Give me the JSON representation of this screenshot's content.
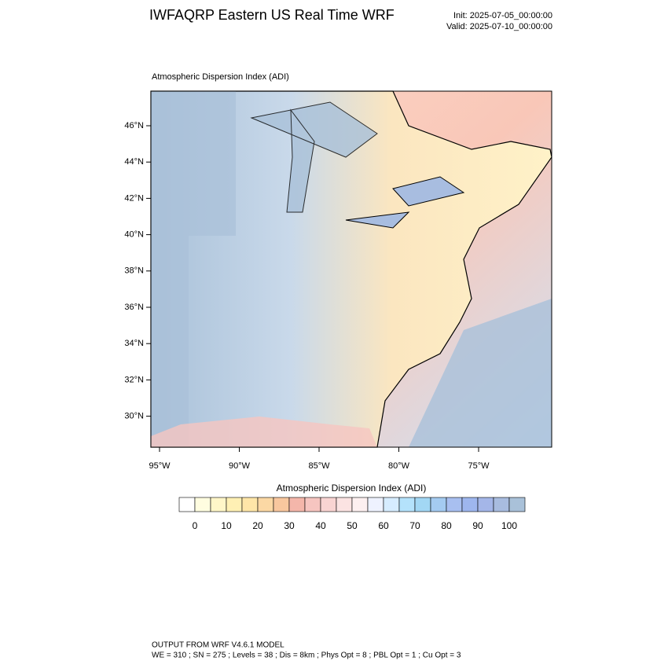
{
  "header": {
    "title": "IWFAQRP Eastern US Real Time WRF",
    "init": "Init: 2025-07-05_00:00:00",
    "valid": "Valid: 2025-07-10_00:00:00"
  },
  "map": {
    "subtitle": "Atmospheric Dispersion Index   (ADI)",
    "lat_ticks": [
      {
        "value": 46,
        "label": "46°N"
      },
      {
        "value": 44,
        "label": "44°N"
      },
      {
        "value": 42,
        "label": "42°N"
      },
      {
        "value": 40,
        "label": "40°N"
      },
      {
        "value": 38,
        "label": "38°N"
      },
      {
        "value": 36,
        "label": "36°N"
      },
      {
        "value": 34,
        "label": "34°N"
      },
      {
        "value": 32,
        "label": "32°N"
      },
      {
        "value": 30,
        "label": "30°N"
      }
    ],
    "lon_ticks": [
      {
        "value": -95,
        "label": "95°W"
      },
      {
        "value": -90,
        "label": "90°W"
      },
      {
        "value": -85,
        "label": "85°W"
      },
      {
        "value": -80,
        "label": "80°W"
      },
      {
        "value": -75,
        "label": "75°W"
      }
    ]
  },
  "colorbar": {
    "title": "Atmospheric Dispersion Index  (ADI)",
    "colors": [
      "#ffffff",
      "#fffde0",
      "#fff6c8",
      "#fff0b4",
      "#ffe6a8",
      "#fbd8a4",
      "#f8c79e",
      "#f4b6aa",
      "#f6c5c0",
      "#f9d4d2",
      "#fbe3e2",
      "#fdf0f0",
      "#eef2ff",
      "#d6ecff",
      "#b4e2fb",
      "#a2d7f4",
      "#a4cbf1",
      "#a8bff0",
      "#9eb6ee",
      "#a4b6e8",
      "#a8bcdf",
      "#a9c1d9"
    ],
    "ticks": [
      0,
      10,
      20,
      30,
      40,
      50,
      60,
      70,
      80,
      90,
      100
    ]
  },
  "footer": {
    "line1": "OUTPUT FROM WRF V4.6.1 MODEL",
    "line2": "WE = 310 ; SN = 275 ; Levels = 38 ; Dis = 8km ; Phys Opt = 8 ; PBL Opt = 1 ; Cu Opt = 3"
  }
}
